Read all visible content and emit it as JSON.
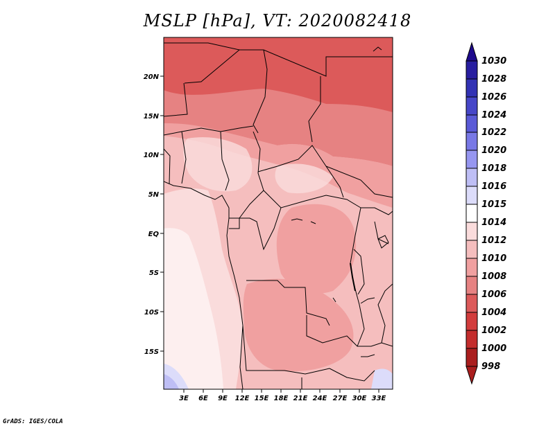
{
  "title": "MSLP [hPa], VT: 2020082418",
  "footer": "GrADS: IGES/COLA",
  "map": {
    "lat_labels": [
      "20N",
      "15N",
      "10N",
      "5N",
      "EQ",
      "5S",
      "10S",
      "15S"
    ],
    "lon_labels": [
      "3E",
      "6E",
      "9E",
      "12E",
      "15E",
      "18E",
      "21E",
      "24E",
      "27E",
      "30E",
      "33E"
    ]
  },
  "colorbar": {
    "levels": [
      "1030",
      "1028",
      "1026",
      "1024",
      "1022",
      "1020",
      "1018",
      "1016",
      "1015",
      "1014",
      "1012",
      "1010",
      "1008",
      "1006",
      "1004",
      "1002",
      "1000",
      "998"
    ],
    "colors": {
      "above_1028": "#1e0a8c",
      "1028": "#281ea0",
      "1026": "#3232b4",
      "1024": "#4646c8",
      "1022": "#5a5ad7",
      "1020": "#7878e6",
      "1018": "#9696f0",
      "1016": "#bebef5",
      "1015": "#dcdcfa",
      "1014": "#ffffff",
      "1012": "#fadcdc",
      "1010": "#f5bebe",
      "1008": "#f0a0a0",
      "1006": "#e68282",
      "1004": "#dc5a5a",
      "1002": "#d23c3c",
      "1000": "#c32d2d",
      "below_1000": "#aa1e1e"
    }
  }
}
